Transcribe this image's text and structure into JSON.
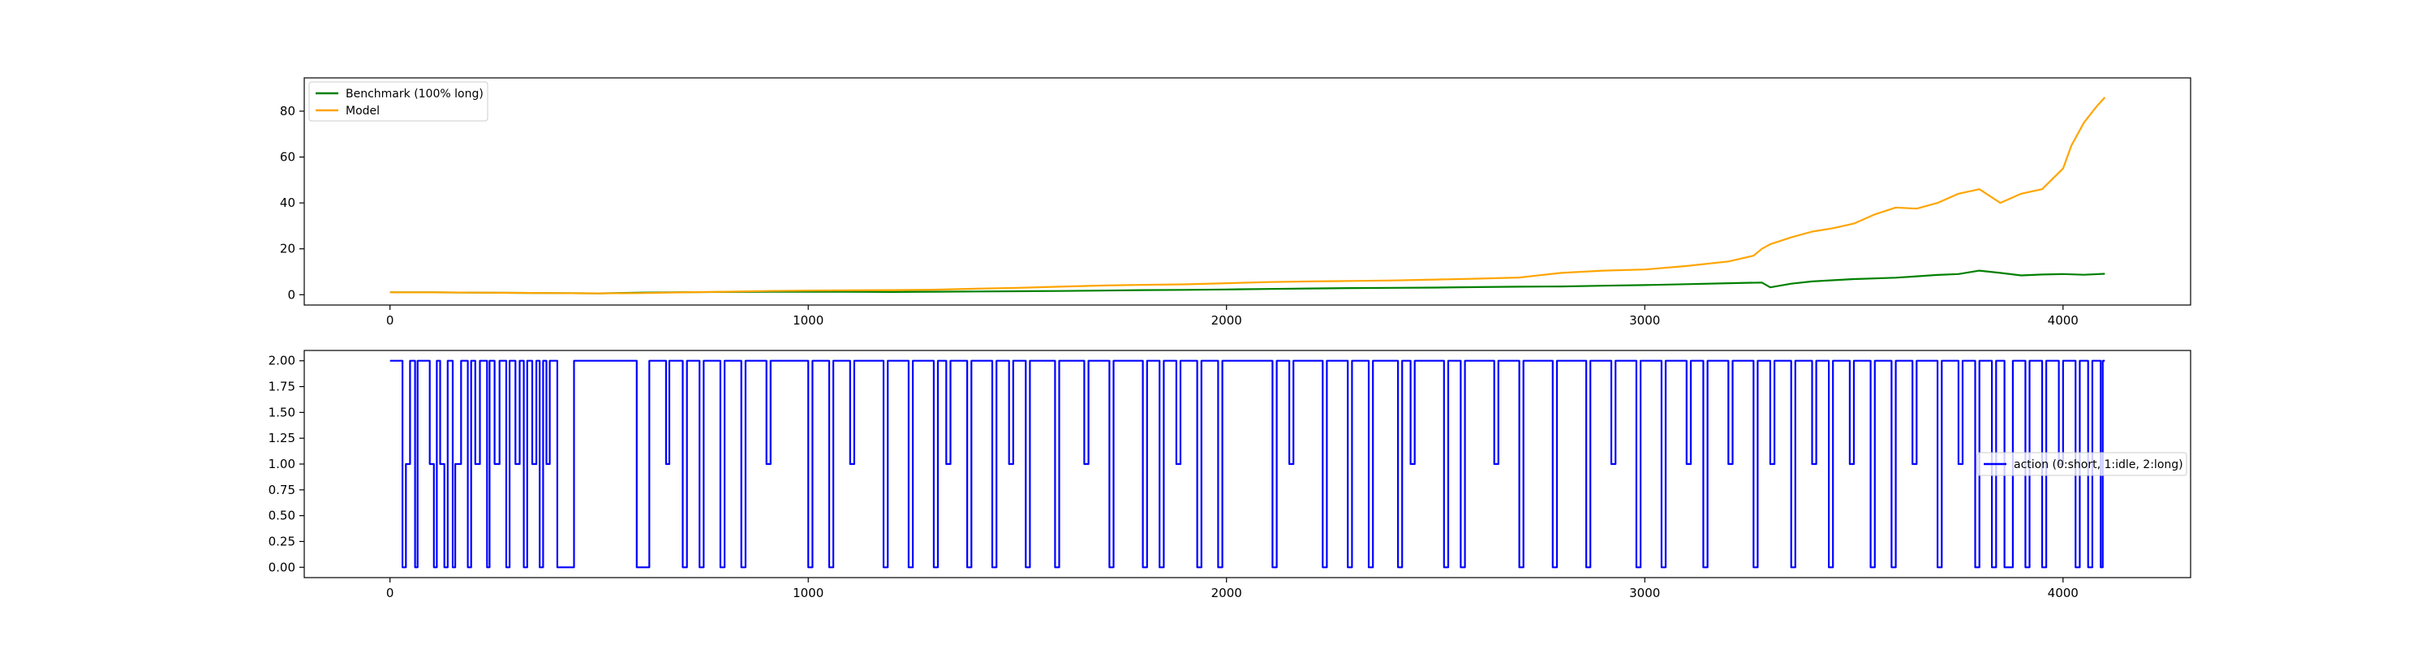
{
  "chart_data": [
    {
      "type": "line",
      "title": "",
      "xlabel": "",
      "ylabel": "",
      "xlim": [
        -205,
        4305
      ],
      "ylim": [
        -4.5,
        94.5
      ],
      "xticks": [
        0,
        1000,
        2000,
        3000,
        4000
      ],
      "yticks": [
        0,
        20,
        40,
        60,
        80
      ],
      "xtick_labels": [
        "0",
        "1000",
        "2000",
        "3000",
        "4000"
      ],
      "ytick_labels": [
        "0",
        "20",
        "40",
        "60",
        "80"
      ],
      "grid": false,
      "legend_position": "upper left",
      "legend": [
        "Benchmark (100% long)",
        "Model"
      ],
      "series": [
        {
          "name": "Benchmark (100% long)",
          "color": "#008000",
          "x": [
            0,
            100,
            200,
            300,
            400,
            500,
            600,
            700,
            800,
            900,
            1000,
            1100,
            1200,
            1300,
            1400,
            1500,
            1600,
            1700,
            1800,
            1900,
            2000,
            2100,
            2200,
            2300,
            2400,
            2500,
            2600,
            2700,
            2800,
            2900,
            3000,
            3100,
            3200,
            3280,
            3300,
            3350,
            3400,
            3500,
            3600,
            3650,
            3700,
            3750,
            3800,
            3850,
            3900,
            3950,
            4000,
            4050,
            4100
          ],
          "y": [
            1.0,
            1.0,
            0.9,
            0.8,
            0.7,
            0.6,
            0.9,
            1.1,
            1.2,
            1.3,
            1.3,
            1.3,
            1.2,
            1.3,
            1.4,
            1.5,
            1.6,
            1.8,
            2.0,
            2.1,
            2.3,
            2.5,
            2.7,
            2.9,
            3.0,
            3.1,
            3.3,
            3.5,
            3.6,
            3.9,
            4.2,
            4.6,
            5.0,
            5.3,
            3.2,
            4.8,
            5.8,
            6.8,
            7.4,
            8.0,
            8.6,
            9.0,
            10.5,
            9.5,
            8.4,
            8.8,
            9.0,
            8.7,
            9.1
          ]
        },
        {
          "name": "Model",
          "color": "#FFA500",
          "x": [
            0,
            100,
            200,
            300,
            400,
            500,
            600,
            700,
            800,
            900,
            1000,
            1100,
            1200,
            1300,
            1400,
            1500,
            1600,
            1700,
            1800,
            1900,
            2000,
            2100,
            2200,
            2300,
            2400,
            2500,
            2600,
            2700,
            2750,
            2800,
            2900,
            3000,
            3100,
            3200,
            3260,
            3280,
            3300,
            3350,
            3400,
            3450,
            3500,
            3550,
            3600,
            3650,
            3700,
            3750,
            3800,
            3850,
            3900,
            3950,
            4000,
            4020,
            4050,
            4080,
            4100
          ],
          "y": [
            1.0,
            1.0,
            0.9,
            0.8,
            0.7,
            0.6,
            0.7,
            1.0,
            1.3,
            1.6,
            1.8,
            1.9,
            2.0,
            2.2,
            2.6,
            3.0,
            3.5,
            4.0,
            4.3,
            4.5,
            5.0,
            5.5,
            5.8,
            6.0,
            6.2,
            6.6,
            7.0,
            7.5,
            8.5,
            9.5,
            10.5,
            11.0,
            12.5,
            14.5,
            17.0,
            20.0,
            22.0,
            25.0,
            27.5,
            29.0,
            31.0,
            35.0,
            38.0,
            37.5,
            40.0,
            44.0,
            46.0,
            40.0,
            44.0,
            46.0,
            55.0,
            65.0,
            75.0,
            82.0,
            86.0
          ]
        }
      ]
    },
    {
      "type": "line",
      "title": "",
      "xlabel": "",
      "ylabel": "",
      "xlim": [
        -205,
        4305
      ],
      "ylim": [
        -0.1,
        2.1
      ],
      "xticks": [
        0,
        1000,
        2000,
        3000,
        4000
      ],
      "yticks": [
        0.0,
        0.25,
        0.5,
        0.75,
        1.0,
        1.25,
        1.5,
        1.75,
        2.0
      ],
      "xtick_labels": [
        "0",
        "1000",
        "2000",
        "3000",
        "4000"
      ],
      "ytick_labels": [
        "0.00",
        "0.25",
        "0.50",
        "0.75",
        "1.00",
        "1.25",
        "1.50",
        "1.75",
        "2.00"
      ],
      "grid": false,
      "legend_position": "center right",
      "legend": [
        "action (0:short, 1:idle, 2:long)"
      ],
      "series": [
        {
          "name": "action (0:short, 1:idle, 2:long)",
          "color": "#0000FF",
          "step": true,
          "x_end": 4100,
          "changes": [
            [
              0,
              2
            ],
            [
              30,
              0
            ],
            [
              38,
              1
            ],
            [
              48,
              2
            ],
            [
              60,
              0
            ],
            [
              66,
              2
            ],
            [
              95,
              1
            ],
            [
              105,
              0
            ],
            [
              112,
              2
            ],
            [
              120,
              1
            ],
            [
              130,
              0
            ],
            [
              138,
              2
            ],
            [
              150,
              0
            ],
            [
              156,
              1
            ],
            [
              170,
              2
            ],
            [
              186,
              0
            ],
            [
              194,
              2
            ],
            [
              204,
              1
            ],
            [
              215,
              2
            ],
            [
              232,
              0
            ],
            [
              238,
              2
            ],
            [
              250,
              1
            ],
            [
              262,
              2
            ],
            [
              278,
              0
            ],
            [
              286,
              2
            ],
            [
              300,
              1
            ],
            [
              310,
              2
            ],
            [
              320,
              0
            ],
            [
              328,
              2
            ],
            [
              340,
              1
            ],
            [
              350,
              2
            ],
            [
              358,
              0
            ],
            [
              366,
              2
            ],
            [
              374,
              1
            ],
            [
              382,
              2
            ],
            [
              400,
              0
            ],
            [
              440,
              2
            ],
            [
              590,
              0
            ],
            [
              620,
              2
            ],
            [
              660,
              1
            ],
            [
              668,
              2
            ],
            [
              700,
              0
            ],
            [
              710,
              2
            ],
            [
              740,
              0
            ],
            [
              750,
              2
            ],
            [
              790,
              0
            ],
            [
              800,
              2
            ],
            [
              840,
              0
            ],
            [
              850,
              2
            ],
            [
              900,
              1
            ],
            [
              910,
              2
            ],
            [
              1000,
              0
            ],
            [
              1010,
              2
            ],
            [
              1050,
              0
            ],
            [
              1060,
              2
            ],
            [
              1100,
              1
            ],
            [
              1110,
              2
            ],
            [
              1180,
              0
            ],
            [
              1190,
              2
            ],
            [
              1240,
              0
            ],
            [
              1250,
              2
            ],
            [
              1300,
              0
            ],
            [
              1310,
              2
            ],
            [
              1330,
              1
            ],
            [
              1340,
              2
            ],
            [
              1380,
              0
            ],
            [
              1390,
              2
            ],
            [
              1440,
              0
            ],
            [
              1450,
              2
            ],
            [
              1480,
              1
            ],
            [
              1490,
              2
            ],
            [
              1520,
              0
            ],
            [
              1530,
              2
            ],
            [
              1590,
              0
            ],
            [
              1600,
              2
            ],
            [
              1660,
              1
            ],
            [
              1670,
              2
            ],
            [
              1720,
              0
            ],
            [
              1730,
              2
            ],
            [
              1800,
              0
            ],
            [
              1810,
              2
            ],
            [
              1840,
              0
            ],
            [
              1850,
              2
            ],
            [
              1880,
              1
            ],
            [
              1890,
              2
            ],
            [
              1930,
              0
            ],
            [
              1940,
              2
            ],
            [
              1980,
              0
            ],
            [
              1990,
              2
            ],
            [
              2110,
              0
            ],
            [
              2120,
              2
            ],
            [
              2150,
              1
            ],
            [
              2160,
              2
            ],
            [
              2230,
              0
            ],
            [
              2240,
              2
            ],
            [
              2290,
              0
            ],
            [
              2300,
              2
            ],
            [
              2340,
              0
            ],
            [
              2350,
              2
            ],
            [
              2410,
              0
            ],
            [
              2420,
              2
            ],
            [
              2440,
              1
            ],
            [
              2450,
              2
            ],
            [
              2520,
              0
            ],
            [
              2530,
              2
            ],
            [
              2560,
              0
            ],
            [
              2570,
              2
            ],
            [
              2640,
              1
            ],
            [
              2650,
              2
            ],
            [
              2700,
              0
            ],
            [
              2710,
              2
            ],
            [
              2780,
              0
            ],
            [
              2790,
              2
            ],
            [
              2860,
              0
            ],
            [
              2870,
              2
            ],
            [
              2920,
              1
            ],
            [
              2930,
              2
            ],
            [
              2980,
              0
            ],
            [
              2990,
              2
            ],
            [
              3040,
              0
            ],
            [
              3050,
              2
            ],
            [
              3100,
              1
            ],
            [
              3110,
              2
            ],
            [
              3140,
              0
            ],
            [
              3150,
              2
            ],
            [
              3200,
              1
            ],
            [
              3210,
              2
            ],
            [
              3260,
              0
            ],
            [
              3270,
              2
            ],
            [
              3300,
              1
            ],
            [
              3310,
              2
            ],
            [
              3350,
              0
            ],
            [
              3360,
              2
            ],
            [
              3400,
              1
            ],
            [
              3410,
              2
            ],
            [
              3440,
              0
            ],
            [
              3450,
              2
            ],
            [
              3490,
              1
            ],
            [
              3500,
              2
            ],
            [
              3540,
              0
            ],
            [
              3550,
              2
            ],
            [
              3590,
              0
            ],
            [
              3600,
              2
            ],
            [
              3640,
              1
            ],
            [
              3650,
              2
            ],
            [
              3700,
              0
            ],
            [
              3710,
              2
            ],
            [
              3750,
              1
            ],
            [
              3760,
              2
            ],
            [
              3790,
              0
            ],
            [
              3800,
              2
            ],
            [
              3830,
              0
            ],
            [
              3840,
              2
            ],
            [
              3860,
              0
            ],
            [
              3880,
              2
            ],
            [
              3910,
              0
            ],
            [
              3920,
              2
            ],
            [
              3950,
              0
            ],
            [
              3960,
              2
            ],
            [
              3990,
              1
            ],
            [
              4000,
              2
            ],
            [
              4030,
              0
            ],
            [
              4040,
              2
            ],
            [
              4060,
              0
            ],
            [
              4070,
              2
            ],
            [
              4090,
              0
            ],
            [
              4095,
              2
            ]
          ]
        }
      ]
    }
  ]
}
